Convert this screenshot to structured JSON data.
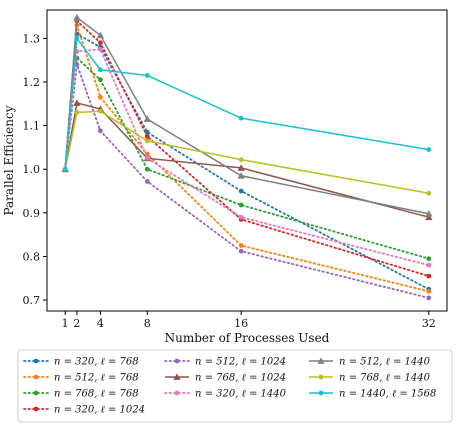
{
  "chart_data": {
    "type": "line",
    "title": "",
    "xlabel": "Number of Processes Used",
    "ylabel": "Parallel Efficiency",
    "x": [
      1,
      2,
      4,
      8,
      16,
      32
    ],
    "xticks": [
      "1",
      "2",
      "4",
      "8",
      "16",
      "32"
    ],
    "yticks": [
      "0.7",
      "0.8",
      "0.9",
      "1.0",
      "1.1",
      "1.2",
      "1.3"
    ],
    "xlim": [
      -0.55,
      33.55
    ],
    "ylim": [
      0.675,
      1.365
    ],
    "grid": false,
    "legend_position": "below",
    "series": [
      {
        "name": "n = 320, ℓ = 768",
        "color": "#1f77b4",
        "style": "dotted",
        "marker": "circle",
        "values": [
          1.0,
          1.31,
          1.28,
          1.085,
          0.95,
          0.725
        ]
      },
      {
        "name": "n = 512, ℓ = 768",
        "color": "#ff7f0e",
        "style": "dotted",
        "marker": "circle",
        "values": [
          1.0,
          1.33,
          1.165,
          1.035,
          0.825,
          0.72
        ]
      },
      {
        "name": "n = 768, ℓ = 768",
        "color": "#2ca02c",
        "style": "dotted",
        "marker": "circle",
        "values": [
          1.0,
          1.255,
          1.205,
          1.0,
          0.918,
          0.795
        ]
      },
      {
        "name": "n = 320, ℓ = 1024",
        "color": "#d62728",
        "style": "dotted",
        "marker": "circle",
        "values": [
          1.0,
          1.34,
          1.29,
          1.075,
          0.885,
          0.755
        ]
      },
      {
        "name": "n = 512, ℓ = 1024",
        "color": "#9467bd",
        "style": "dotted",
        "marker": "circle",
        "values": [
          1.0,
          1.24,
          1.088,
          0.972,
          0.812,
          0.705
        ]
      },
      {
        "name": "n = 768, ℓ = 1024",
        "color": "#8c564b",
        "style": "solid",
        "marker": "triangle",
        "values": [
          1.0,
          1.152,
          1.138,
          1.025,
          1.003,
          0.89
        ]
      },
      {
        "name": "n = 320, ℓ = 1440",
        "color": "#e377c2",
        "style": "dotted",
        "marker": "circle",
        "values": [
          1.0,
          1.27,
          1.275,
          1.025,
          0.89,
          0.78
        ]
      },
      {
        "name": "n = 512, ℓ = 1440",
        "color": "#7f7f7f",
        "style": "solid",
        "marker": "triangle",
        "values": [
          1.0,
          1.348,
          1.307,
          1.115,
          0.985,
          0.898
        ]
      },
      {
        "name": "n = 768, ℓ = 1440",
        "color": "#bcbd22",
        "style": "solid",
        "marker": "circle",
        "values": [
          1.0,
          1.13,
          1.133,
          1.065,
          1.022,
          0.945
        ]
      },
      {
        "name": "n = 1440, ℓ = 1568",
        "color": "#17becf",
        "style": "solid",
        "marker": "circle",
        "values": [
          1.0,
          1.3,
          1.228,
          1.215,
          1.117,
          1.045
        ]
      }
    ]
  }
}
